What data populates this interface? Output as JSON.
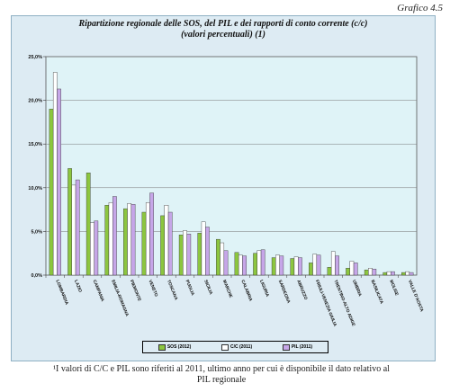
{
  "frame_label": "Grafico 4.5",
  "chart_data": {
    "type": "bar",
    "title_line1": "Ripartizione regionale delle SOS, del PIL e dei rapporti di conto corrente (c/c)",
    "title_line2": "(valori percentuali) (1)",
    "ylim": [
      0,
      25
    ],
    "yticks": [
      "0,0%",
      "5,0%",
      "10,0%",
      "15,0%",
      "20,0%",
      "25,0%"
    ],
    "grid": "horizontal",
    "legend_position": "bottom",
    "categories": [
      "LOMBARDIA",
      "LAZIO",
      "CAMPANIA",
      "EMILIA-ROMAGNA",
      "PIEMONTE",
      "VENETO",
      "TOSCANA",
      "PUGLIA",
      "SICILIA",
      "MARCHE",
      "CALABRIA",
      "LIGURIA",
      "SARDEGNA",
      "ABRUZZO",
      "FRIULI-VENEZIA GIULIA",
      "TRENTINO-ALTO ADIGE",
      "UMBRIA",
      "BASILICATA",
      "MOLISE",
      "VALLE D'AOSTA"
    ],
    "series": [
      {
        "name": "SOS (2012)",
        "color": "#8cc63f",
        "values": [
          19.0,
          12.2,
          11.7,
          8.0,
          7.6,
          7.2,
          6.8,
          4.6,
          4.8,
          4.1,
          2.6,
          2.5,
          2.0,
          1.9,
          1.4,
          0.9,
          0.8,
          0.6,
          0.3,
          0.3
        ]
      },
      {
        "name": "C/C (2011)",
        "color": "#ffffff",
        "values": [
          23.2,
          10.3,
          6.0,
          8.3,
          8.2,
          8.3,
          8.0,
          5.1,
          6.1,
          3.7,
          2.3,
          2.8,
          2.3,
          2.1,
          2.4,
          2.7,
          1.6,
          0.8,
          0.4,
          0.4
        ]
      },
      {
        "name": "PIL (2011)",
        "color": "#c6a6e8",
        "values": [
          21.3,
          10.9,
          6.2,
          9.0,
          8.1,
          9.4,
          7.2,
          4.7,
          5.5,
          2.8,
          2.2,
          2.9,
          2.2,
          2.0,
          2.3,
          2.2,
          1.4,
          0.7,
          0.4,
          0.3
        ]
      }
    ]
  },
  "footnote_line1": "¹I valori di C/C e PIL sono riferiti al 2011, ultimo anno per cui è disponibile il dato relativo al",
  "footnote_line2": "PIL regionale"
}
